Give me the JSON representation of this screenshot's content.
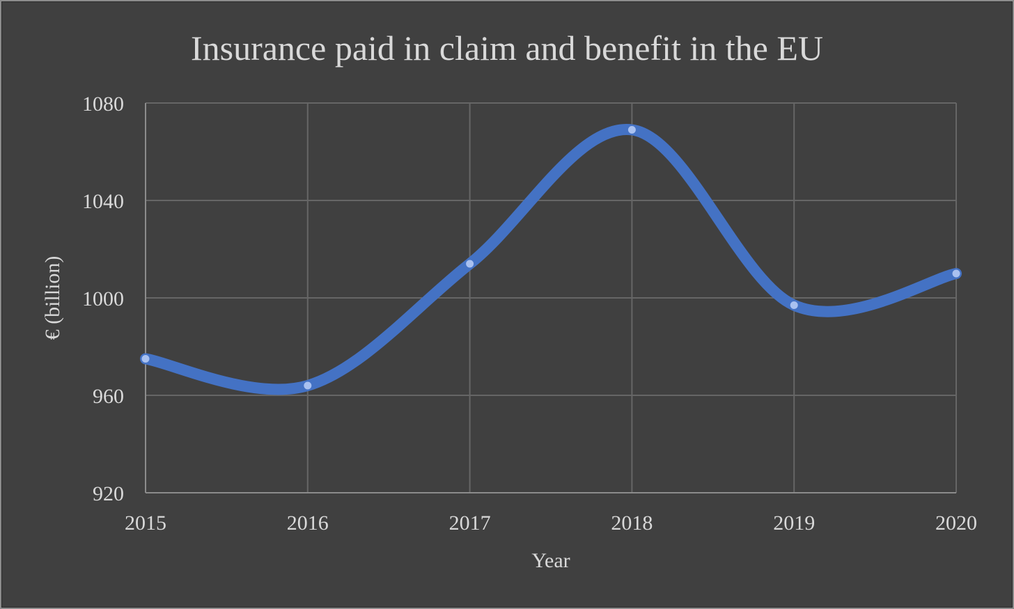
{
  "chart_data": {
    "type": "line",
    "title": "Insurance paid in claim and benefit in the EU",
    "xlabel": "Year",
    "ylabel": "€ (billion)",
    "categories": [
      "2015",
      "2016",
      "2017",
      "2018",
      "2019",
      "2020"
    ],
    "ylim": [
      920,
      1080
    ],
    "yticks": [
      "1080",
      "1040",
      "1000",
      "960",
      "920"
    ],
    "grid": true,
    "smooth": true,
    "series": [
      {
        "values": [
          975,
          964,
          1014,
          1069,
          997,
          1010
        ],
        "color": "#4472c4",
        "marker_color": "#a9c1f0"
      }
    ]
  },
  "colors": {
    "background": "#404040",
    "text": "#d9d9d9",
    "grid": "#666666"
  }
}
